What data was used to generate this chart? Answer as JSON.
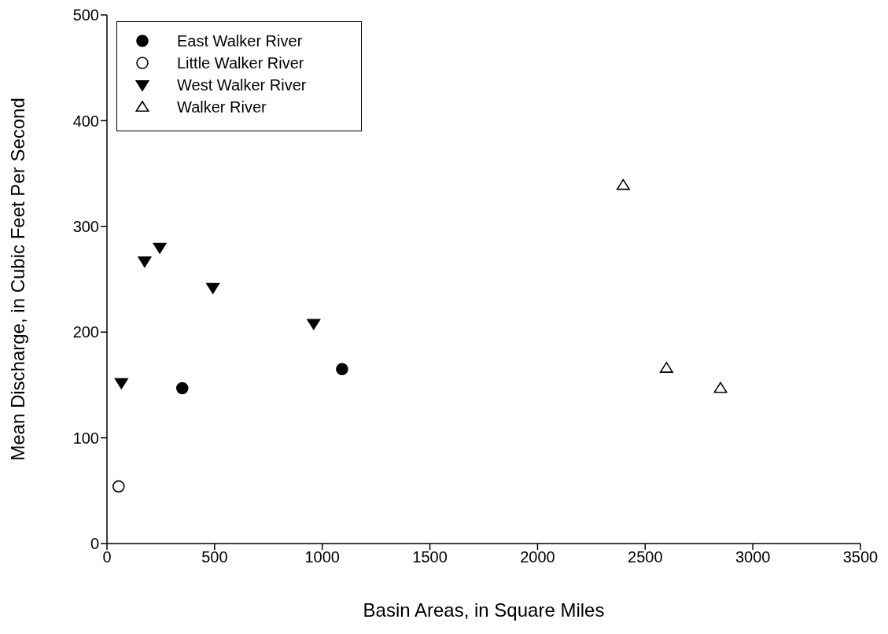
{
  "chart_data": {
    "type": "scatter",
    "xlabel": "Basin Areas, in Square Miles",
    "ylabel": "Mean Discharge, in Cubic Feet Per Second",
    "xlim": [
      0,
      3500
    ],
    "xticks": [
      0,
      500,
      1000,
      1500,
      2000,
      2500,
      3000,
      3500
    ],
    "ylim": [
      0,
      500
    ],
    "yticks": [
      0,
      100,
      200,
      300,
      400,
      500
    ],
    "grid": false,
    "legend": "top left",
    "series": [
      {
        "name": "East Walker River",
        "color": "#000000",
        "marker": "circle",
        "x": [
          350,
          1092
        ],
        "values": [
          147,
          165
        ]
      },
      {
        "name": "Little Walker River",
        "color": "#000000",
        "marker": "circle-open",
        "x": [
          54
        ],
        "values": [
          54
        ]
      },
      {
        "name": "West Walker River",
        "color": "#000000",
        "marker": "triangle-down",
        "x": [
          67,
          175,
          245,
          492,
          960
        ],
        "values": [
          152,
          267,
          280,
          242,
          208
        ]
      },
      {
        "name": "Walker River",
        "color": "#000000",
        "marker": "triangle-open",
        "x": [
          2398,
          2599,
          2850
        ],
        "values": [
          339,
          166,
          147
        ]
      }
    ]
  }
}
